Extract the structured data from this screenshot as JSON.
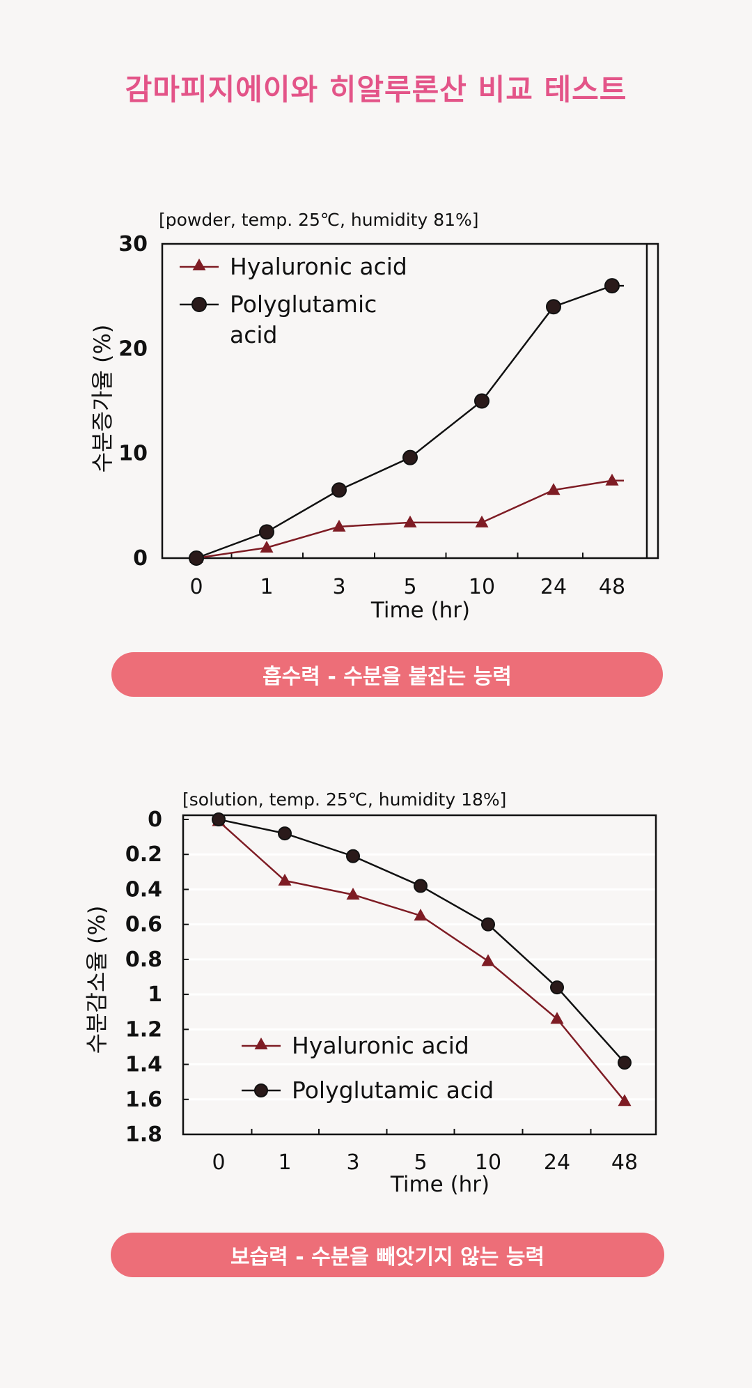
{
  "page": {
    "title": "감마피지에이와 히알루론산 비교 테스트",
    "caption1": "흡수력 - 수분을 붙잡는 능력",
    "caption2": "보습력 - 수분을 빼앗기지 않는 능력"
  },
  "colors": {
    "title": "#e35488",
    "pill": "#ed6e78",
    "hyaluronic": "#7e1c24",
    "polyglutamic": "#111111"
  },
  "chart_data": [
    {
      "type": "line",
      "subtitle": "[powder, temp. 25℃, humidity 81%]",
      "ylabel": "수분증가율 (%)",
      "xlabel": "Time (hr)",
      "categories": [
        "0",
        "1",
        "3",
        "5",
        "10",
        "24",
        "48"
      ],
      "yticks": [
        "0",
        "10",
        "20",
        "30"
      ],
      "ylim": [
        0,
        30
      ],
      "legend_position": "top-left",
      "series": [
        {
          "name": "Hyaluronic acid",
          "marker": "triangle",
          "values": [
            0,
            1,
            3,
            3.4,
            3.4,
            6.5,
            7.4
          ]
        },
        {
          "name": "Polyglutamic acid",
          "name_lines": [
            "Polyglutamic",
            "acid"
          ],
          "marker": "circle",
          "values": [
            0,
            2.5,
            6.5,
            9.6,
            15,
            24,
            26
          ]
        }
      ]
    },
    {
      "type": "line",
      "subtitle": "[solution, temp. 25℃, humidity 18%]",
      "ylabel": "수분감소율 (%)",
      "xlabel": "Time (hr)",
      "categories": [
        "0",
        "1",
        "3",
        "5",
        "10",
        "24",
        "48"
      ],
      "yticks": [
        "0",
        "0.2",
        "0.4",
        "0.6",
        "0.8",
        "1",
        "1.2",
        "1.4",
        "1.6",
        "1.8"
      ],
      "ylim": [
        0,
        1.8
      ],
      "y_inverted": true,
      "grid": true,
      "legend_position": "bottom-left",
      "series": [
        {
          "name": "Hyaluronic acid",
          "marker": "triangle",
          "values": [
            0.01,
            0.35,
            0.43,
            0.55,
            0.81,
            1.14,
            1.61
          ]
        },
        {
          "name": "Polyglutamic acid",
          "marker": "circle",
          "values": [
            0,
            0.08,
            0.21,
            0.38,
            0.6,
            0.96,
            1.39
          ]
        }
      ]
    }
  ]
}
